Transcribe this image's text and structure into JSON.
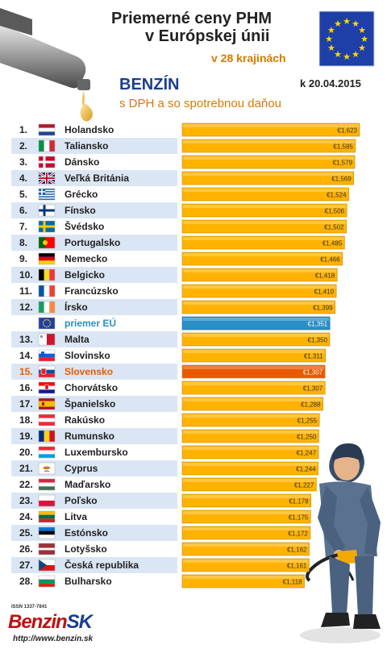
{
  "header": {
    "title_line1": "Priemerné ceny PHM",
    "title_line2": "v Európskej únii",
    "count_label": "v 28 krajinách",
    "fuel": "BENZÍN",
    "tax_note": "s DPH a so spotrebnou daňou",
    "date": "k 20.04.2015"
  },
  "footer": {
    "issn": "ISSN 1337-7841",
    "logo_main": "Benzin",
    "logo_suffix": "SK",
    "url": "http://www.benzin.sk"
  },
  "colors": {
    "bar": "#ffb300",
    "highlight_bar": "#e85a00",
    "eu_bar": "#2a8fc7",
    "highlight_text": "#e85a00",
    "eu_text": "#2a8fc7",
    "row_alt": "#dbe6f4"
  },
  "chart_data": {
    "type": "bar",
    "orientation": "horizontal",
    "title": "Priemerné ceny PHM v Európskej únii",
    "xlim": [
      0,
      1.65
    ],
    "rows": [
      {
        "rank": "1.",
        "country": "Holandsko",
        "value": 1.623,
        "label": "€1,623",
        "flag": "netherlands-flag-icon"
      },
      {
        "rank": "2.",
        "country": "Taliansko",
        "value": 1.585,
        "label": "€1,585",
        "flag": "italy-flag-icon"
      },
      {
        "rank": "3.",
        "country": "Dánsko",
        "value": 1.579,
        "label": "€1,579",
        "flag": "denmark-flag-icon"
      },
      {
        "rank": "4.",
        "country": "Veľká Británia",
        "value": 1.569,
        "label": "€1,569",
        "flag": "uk-flag-icon"
      },
      {
        "rank": "5.",
        "country": "Grécko",
        "value": 1.524,
        "label": "€1,524",
        "flag": "greece-flag-icon"
      },
      {
        "rank": "6.",
        "country": "Fínsko",
        "value": 1.506,
        "label": "€1,506",
        "flag": "finland-flag-icon"
      },
      {
        "rank": "7.",
        "country": "Švédsko",
        "value": 1.502,
        "label": "€1,502",
        "flag": "sweden-flag-icon"
      },
      {
        "rank": "8.",
        "country": "Portugalsko",
        "value": 1.485,
        "label": "€1,485",
        "flag": "portugal-flag-icon"
      },
      {
        "rank": "9.",
        "country": "Nemecko",
        "value": 1.466,
        "label": "€1,466",
        "flag": "germany-flag-icon"
      },
      {
        "rank": "10.",
        "country": "Belgicko",
        "value": 1.418,
        "label": "€1,418",
        "flag": "belgium-flag-icon"
      },
      {
        "rank": "11.",
        "country": "Francúzsko",
        "value": 1.41,
        "label": "€1,410",
        "flag": "france-flag-icon"
      },
      {
        "rank": "12.",
        "country": "Írsko",
        "value": 1.399,
        "label": "€1,399",
        "flag": "ireland-flag-icon"
      },
      {
        "rank": "",
        "country": "priemer EÚ",
        "value": 1.351,
        "label": "€1,351",
        "flag": "eu-flag-icon",
        "kind": "eu"
      },
      {
        "rank": "13.",
        "country": "Malta",
        "value": 1.35,
        "label": "€1,350",
        "flag": "malta-flag-icon"
      },
      {
        "rank": "14.",
        "country": "Slovinsko",
        "value": 1.311,
        "label": "€1,311",
        "flag": "slovenia-flag-icon"
      },
      {
        "rank": "15.",
        "country": "Slovensko",
        "value": 1.307,
        "label": "€1,307",
        "flag": "slovakia-flag-icon",
        "kind": "highlight"
      },
      {
        "rank": "16.",
        "country": "Chorvátsko",
        "value": 1.307,
        "label": "€1,307",
        "flag": "croatia-flag-icon"
      },
      {
        "rank": "17.",
        "country": "Španielsko",
        "value": 1.288,
        "label": "€1,288",
        "flag": "spain-flag-icon"
      },
      {
        "rank": "18.",
        "country": "Rakúsko",
        "value": 1.255,
        "label": "€1,255",
        "flag": "austria-flag-icon"
      },
      {
        "rank": "19.",
        "country": "Rumunsko",
        "value": 1.25,
        "label": "€1,250",
        "flag": "romania-flag-icon"
      },
      {
        "rank": "20.",
        "country": "Luxembursko",
        "value": 1.247,
        "label": "€1,247",
        "flag": "luxembourg-flag-icon"
      },
      {
        "rank": "21.",
        "country": "Cyprus",
        "value": 1.244,
        "label": "€1,244",
        "flag": "cyprus-flag-icon"
      },
      {
        "rank": "22.",
        "country": "Maďarsko",
        "value": 1.227,
        "label": "€1,227",
        "flag": "hungary-flag-icon"
      },
      {
        "rank": "23.",
        "country": "Poľsko",
        "value": 1.178,
        "label": "€1,178",
        "flag": "poland-flag-icon"
      },
      {
        "rank": "24.",
        "country": "Litva",
        "value": 1.175,
        "label": "€1,175",
        "flag": "lithuania-flag-icon"
      },
      {
        "rank": "25.",
        "country": "Estónsko",
        "value": 1.172,
        "label": "€1,172",
        "flag": "estonia-flag-icon"
      },
      {
        "rank": "26.",
        "country": "Lotyšsko",
        "value": 1.162,
        "label": "€1,162",
        "flag": "latvia-flag-icon"
      },
      {
        "rank": "27.",
        "country": "Česká republika",
        "value": 1.161,
        "label": "€1,161",
        "flag": "czech-flag-icon"
      },
      {
        "rank": "28.",
        "country": "Bulharsko",
        "value": 1.118,
        "label": "€1,118",
        "flag": "bulgaria-flag-icon"
      }
    ]
  }
}
